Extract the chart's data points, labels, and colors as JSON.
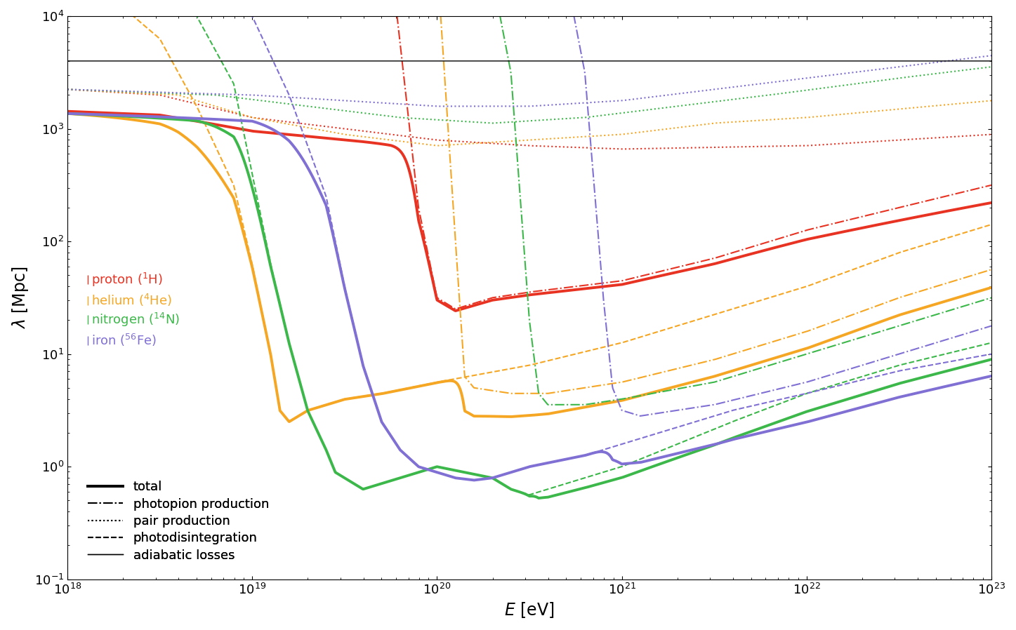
{
  "xlabel": "$E$ [eV]",
  "ylabel": "$\\lambda$ [Mpc]",
  "xlim": [
    1e+18,
    1e+23
  ],
  "ylim": [
    0.1,
    10000.0
  ],
  "colors": {
    "proton": "#e83323",
    "helium": "#f5a623",
    "nitrogen": "#3cb84a",
    "iron": "#8070d4"
  },
  "adiabatic_Mpc": 4000.0,
  "lw_total": 2.8,
  "lw_process": 1.5,
  "lw_adiabatic": 1.0,
  "fontsize_label": 17,
  "fontsize_legend": 13
}
